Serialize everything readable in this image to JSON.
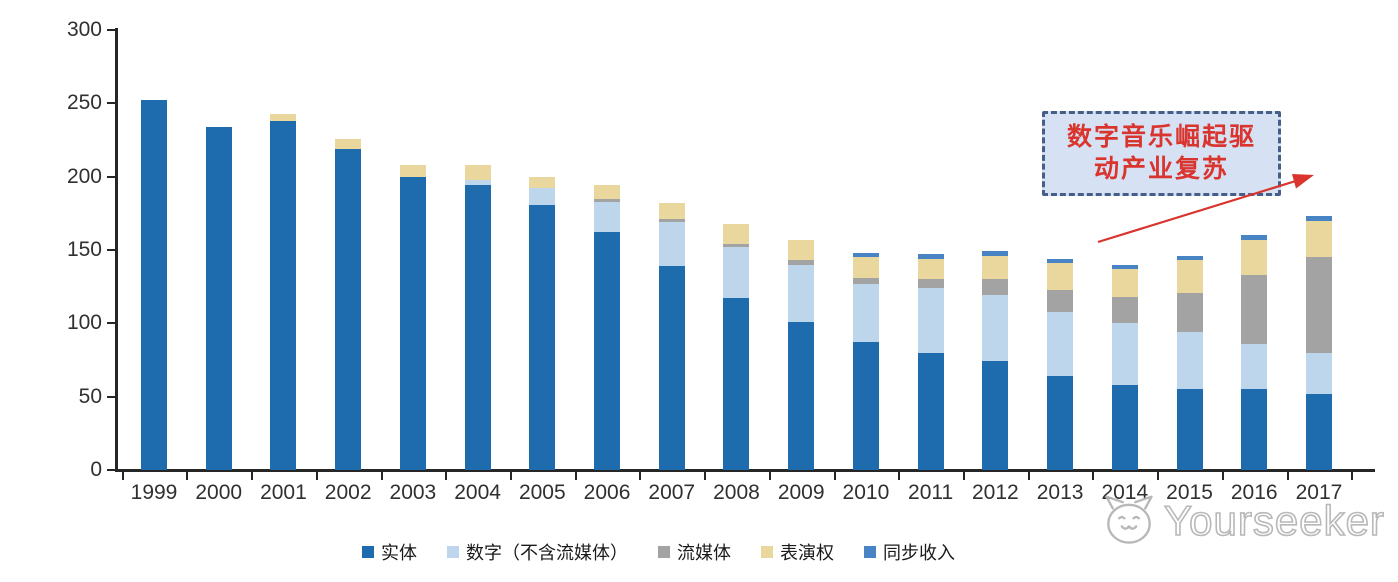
{
  "chart_data": {
    "type": "bar",
    "stacked": true,
    "categories": [
      "1999",
      "2000",
      "2001",
      "2002",
      "2003",
      "2004",
      "2005",
      "2006",
      "2007",
      "2008",
      "2009",
      "2010",
      "2011",
      "2012",
      "2013",
      "2014",
      "2015",
      "2016",
      "2017"
    ],
    "series": [
      {
        "name": "实体",
        "color": "#1e6cae",
        "values": [
          252,
          234,
          238,
          219,
          200,
          194,
          181,
          162,
          139,
          117,
          101,
          87,
          80,
          74,
          64,
          58,
          55,
          55,
          52
        ]
      },
      {
        "name": "数字（不含流媒体）",
        "color": "#bdd6ec",
        "values": [
          0,
          0,
          0,
          0,
          0,
          4,
          11,
          21,
          30,
          35,
          39,
          40,
          44,
          45,
          44,
          42,
          39,
          31,
          28
        ]
      },
      {
        "name": "流媒体",
        "color": "#a3a3a3",
        "values": [
          0,
          0,
          0,
          0,
          0,
          0,
          0,
          2,
          2,
          2,
          3,
          4,
          6,
          11,
          15,
          18,
          27,
          47,
          65
        ]
      },
      {
        "name": "表演权",
        "color": "#e9d79e",
        "values": [
          0,
          0,
          5,
          7,
          8,
          10,
          8,
          9,
          11,
          14,
          14,
          14,
          14,
          16,
          18,
          19,
          22,
          24,
          25
        ]
      },
      {
        "name": "同步收入",
        "color": "#4884c4",
        "values": [
          0,
          0,
          0,
          0,
          0,
          0,
          0,
          0,
          0,
          0,
          0,
          3,
          3,
          3,
          3,
          3,
          3,
          3,
          3
        ]
      }
    ],
    "ylim": [
      0,
      300
    ],
    "yticks": [
      0,
      50,
      100,
      150,
      200,
      250,
      300
    ],
    "grid": false,
    "legend_position": "bottom",
    "axis_color": "#262626"
  },
  "annotation": {
    "line1": "数字音乐崛起驱",
    "line2": "动产业复苏",
    "text_color": "#d9342e",
    "border_color": "#465f88",
    "fill_color": "#d6e2f3",
    "arrow_color": "#d9342e"
  },
  "watermark": {
    "text": "Yourseeker",
    "logo": "cat-face-logo",
    "color": "#b5b5b5"
  }
}
